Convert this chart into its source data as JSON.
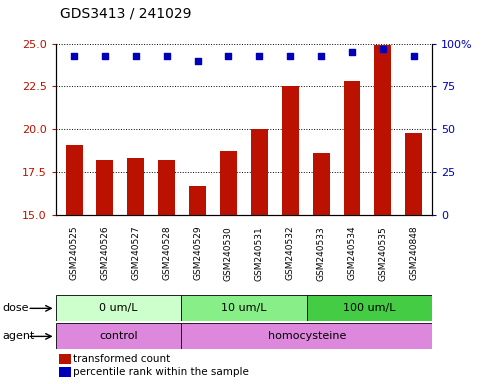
{
  "title": "GDS3413 / 241029",
  "samples": [
    "GSM240525",
    "GSM240526",
    "GSM240527",
    "GSM240528",
    "GSM240529",
    "GSM240530",
    "GSM240531",
    "GSM240532",
    "GSM240533",
    "GSM240534",
    "GSM240535",
    "GSM240848"
  ],
  "transformed_counts": [
    19.1,
    18.2,
    18.3,
    18.2,
    16.7,
    18.7,
    20.0,
    22.5,
    18.6,
    22.8,
    24.9,
    19.8
  ],
  "percentile_ranks": [
    93,
    93,
    93,
    93,
    90,
    93,
    93,
    93,
    93,
    95,
    97,
    93
  ],
  "ylim_left": [
    15,
    25
  ],
  "ylim_right": [
    0,
    100
  ],
  "yticks_left": [
    15,
    17.5,
    20,
    22.5,
    25
  ],
  "yticks_right": [
    0,
    25,
    50,
    75,
    100
  ],
  "bar_color": "#bb1100",
  "dot_color": "#0000bb",
  "dose_groups": [
    {
      "label": "0 um/L",
      "start": 0,
      "end": 4,
      "color": "#ccffcc"
    },
    {
      "label": "10 um/L",
      "start": 4,
      "end": 8,
      "color": "#88ee88"
    },
    {
      "label": "100 um/L",
      "start": 8,
      "end": 12,
      "color": "#44cc44"
    }
  ],
  "agent_bounds": [
    {
      "label": "control",
      "start": 0,
      "end": 4
    },
    {
      "label": "homocysteine",
      "start": 4,
      "end": 12
    }
  ],
  "agent_color": "#dd88dd",
  "dose_label": "dose",
  "agent_label": "agent",
  "legend_items": [
    {
      "label": "transformed count",
      "color": "#bb1100"
    },
    {
      "label": "percentile rank within the sample",
      "color": "#0000bb"
    }
  ],
  "plot_bg": "#ffffff",
  "xtick_bg": "#cccccc"
}
